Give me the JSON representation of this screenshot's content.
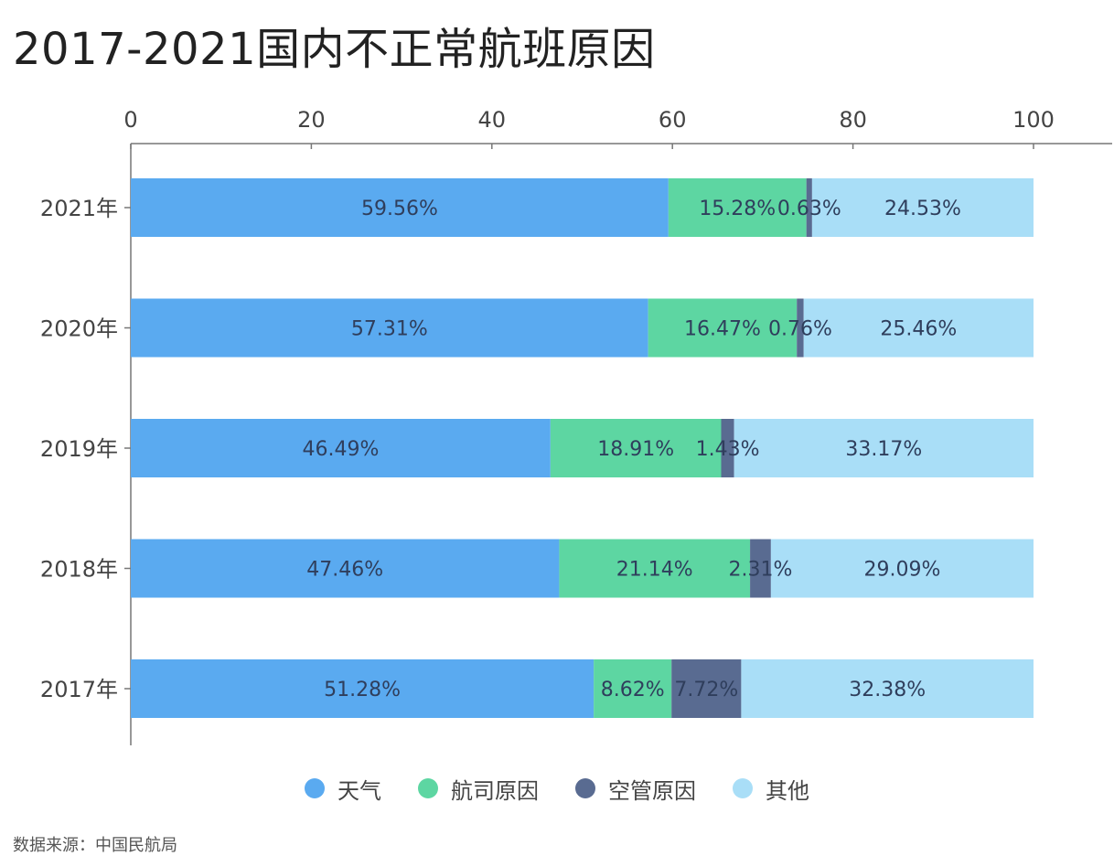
{
  "title": "2017-2021国内不正常航班原因",
  "source_note": "数据来源：中国民航局",
  "chart_data": {
    "type": "bar",
    "orientation": "horizontal",
    "stacked": true,
    "title": "2017-2021国内不正常航班原因",
    "xlim": [
      0,
      100
    ],
    "x_ticks": [
      0,
      20,
      40,
      60,
      80,
      100
    ],
    "x_axis_position": "top",
    "grid": false,
    "legend_position": "bottom",
    "categories": [
      "2021年",
      "2020年",
      "2019年",
      "2018年",
      "2017年"
    ],
    "series": [
      {
        "name": "天气",
        "color": "#5aaaf0",
        "values": [
          59.56,
          57.31,
          46.49,
          47.46,
          51.28
        ],
        "labels": [
          "59.56%",
          "57.31%",
          "46.49%",
          "47.46%",
          "51.28%"
        ]
      },
      {
        "name": "航司原因",
        "color": "#5dd6a2",
        "values": [
          15.28,
          16.47,
          18.91,
          21.14,
          8.62
        ],
        "labels": [
          "15.28%",
          "16.47%",
          "18.91%",
          "21.14%",
          "8.62%"
        ]
      },
      {
        "name": "空管原因",
        "color": "#596b91",
        "values": [
          0.63,
          0.76,
          1.43,
          2.31,
          7.72
        ],
        "labels": [
          "0.63%",
          "0.76%",
          "1.43%",
          "2.31%",
          "7.72%"
        ]
      },
      {
        "name": "其他",
        "color": "#a9def7",
        "values": [
          24.53,
          25.46,
          33.17,
          29.09,
          32.38
        ],
        "labels": [
          "24.53%",
          "25.46%",
          "33.17%",
          "29.09%",
          "32.38%"
        ]
      }
    ]
  }
}
